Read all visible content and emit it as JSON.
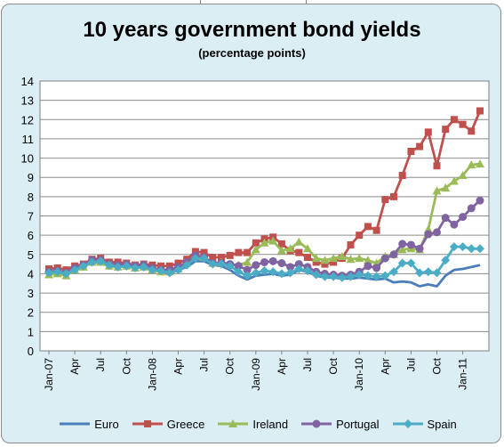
{
  "chart_data": {
    "type": "line",
    "title": "10 years government bond yields",
    "subtitle": "(percentage points)",
    "xlabel": "",
    "ylabel": "",
    "ylim": [
      0,
      14
    ],
    "yticks": [
      0,
      1,
      2,
      3,
      4,
      5,
      6,
      7,
      8,
      9,
      10,
      11,
      12,
      13,
      14
    ],
    "grid": true,
    "legend_position": "bottom",
    "x": [
      "Jan-07",
      "Feb-07",
      "Mar-07",
      "Apr-07",
      "May-07",
      "Jun-07",
      "Jul-07",
      "Aug-07",
      "Sep-07",
      "Oct-07",
      "Nov-07",
      "Dec-07",
      "Jan-08",
      "Feb-08",
      "Mar-08",
      "Apr-08",
      "May-08",
      "Jun-08",
      "Jul-08",
      "Aug-08",
      "Sep-08",
      "Oct-08",
      "Nov-08",
      "Dec-08",
      "Jan-09",
      "Feb-09",
      "Mar-09",
      "Apr-09",
      "May-09",
      "Jun-09",
      "Jul-09",
      "Aug-09",
      "Sep-09",
      "Oct-09",
      "Nov-09",
      "Dec-09",
      "Jan-10",
      "Feb-10",
      "Mar-10",
      "Apr-10",
      "May-10",
      "Jun-10",
      "Jul-10",
      "Aug-10",
      "Sep-10",
      "Oct-10",
      "Nov-10",
      "Dec-10",
      "Jan-11",
      "Feb-11",
      "Mar-11"
    ],
    "x_tick_labels": [
      "Jan-07",
      "Apr",
      "Jul",
      "Oct",
      "Jan-08",
      "Apr",
      "Jul",
      "Oct",
      "Jan-09",
      "Apr",
      "Jul",
      "Oct",
      "Jan-10",
      "Apr",
      "Jul",
      "Oct",
      "Jan-11"
    ],
    "series": [
      {
        "name": "Euro",
        "color": "#4a7ebb",
        "marker": "none",
        "values": [
          4.05,
          4.05,
          4.0,
          4.2,
          4.35,
          4.6,
          4.55,
          4.4,
          4.35,
          4.4,
          4.3,
          4.35,
          4.2,
          4.1,
          4.0,
          4.2,
          4.35,
          4.65,
          4.65,
          4.45,
          4.4,
          4.2,
          3.9,
          3.7,
          3.9,
          3.95,
          4.0,
          3.9,
          3.95,
          4.2,
          4.1,
          3.9,
          3.8,
          3.8,
          3.75,
          3.75,
          3.8,
          3.75,
          3.7,
          3.75,
          3.55,
          3.6,
          3.55,
          3.35,
          3.45,
          3.35,
          3.9,
          4.2,
          4.25,
          4.35,
          4.45
        ]
      },
      {
        "name": "Greece",
        "color": "#c0504d",
        "marker": "square",
        "values": [
          4.25,
          4.3,
          4.2,
          4.4,
          4.5,
          4.75,
          4.8,
          4.6,
          4.6,
          4.55,
          4.45,
          4.5,
          4.45,
          4.4,
          4.4,
          4.55,
          4.75,
          5.15,
          5.1,
          4.85,
          4.85,
          4.95,
          5.1,
          5.1,
          5.6,
          5.8,
          5.9,
          5.55,
          5.2,
          5.1,
          4.85,
          4.6,
          4.5,
          4.6,
          4.8,
          5.5,
          6.0,
          6.45,
          6.25,
          7.85,
          8.0,
          9.1,
          10.35,
          10.6,
          11.35,
          9.6,
          11.5,
          12.0,
          11.75,
          11.4,
          12.45
        ]
      },
      {
        "name": "Ireland",
        "color": "#9bbb59",
        "marker": "triangle",
        "values": [
          3.95,
          4.0,
          3.9,
          4.2,
          4.35,
          4.6,
          4.6,
          4.4,
          4.35,
          4.4,
          4.3,
          4.35,
          4.2,
          4.1,
          4.1,
          4.25,
          4.55,
          4.9,
          4.85,
          4.55,
          4.6,
          4.5,
          4.45,
          4.6,
          5.25,
          5.6,
          5.7,
          5.2,
          5.3,
          5.65,
          5.3,
          4.8,
          4.7,
          4.8,
          4.9,
          4.75,
          4.8,
          4.7,
          4.55,
          4.9,
          5.0,
          5.25,
          5.3,
          5.25,
          6.3,
          8.3,
          8.45,
          8.8,
          9.1,
          9.65,
          9.7
        ]
      },
      {
        "name": "Portugal",
        "color": "#8064a2",
        "marker": "circle",
        "values": [
          4.1,
          4.15,
          4.05,
          4.3,
          4.45,
          4.7,
          4.7,
          4.5,
          4.45,
          4.5,
          4.4,
          4.45,
          4.3,
          4.2,
          4.2,
          4.35,
          4.6,
          4.95,
          4.85,
          4.55,
          4.55,
          4.5,
          4.4,
          4.2,
          4.45,
          4.6,
          4.65,
          4.55,
          4.35,
          4.5,
          4.35,
          4.1,
          4.0,
          3.95,
          3.9,
          3.95,
          4.1,
          4.4,
          4.3,
          4.8,
          5.0,
          5.55,
          5.5,
          5.3,
          6.05,
          6.15,
          6.9,
          6.55,
          6.95,
          7.4,
          7.8
        ]
      },
      {
        "name": "Spain",
        "color": "#4bacc6",
        "marker": "diamond",
        "values": [
          4.05,
          4.1,
          4.0,
          4.2,
          4.4,
          4.6,
          4.65,
          4.45,
          4.35,
          4.4,
          4.3,
          4.35,
          4.2,
          4.15,
          4.05,
          4.2,
          4.45,
          4.8,
          4.8,
          4.5,
          4.5,
          4.4,
          4.1,
          3.9,
          4.05,
          4.15,
          4.1,
          4.0,
          4.05,
          4.25,
          4.15,
          3.95,
          3.85,
          3.85,
          3.8,
          3.85,
          3.95,
          3.9,
          3.85,
          3.9,
          4.1,
          4.55,
          4.55,
          4.05,
          4.1,
          4.05,
          4.7,
          5.4,
          5.4,
          5.3,
          5.3
        ]
      }
    ]
  }
}
